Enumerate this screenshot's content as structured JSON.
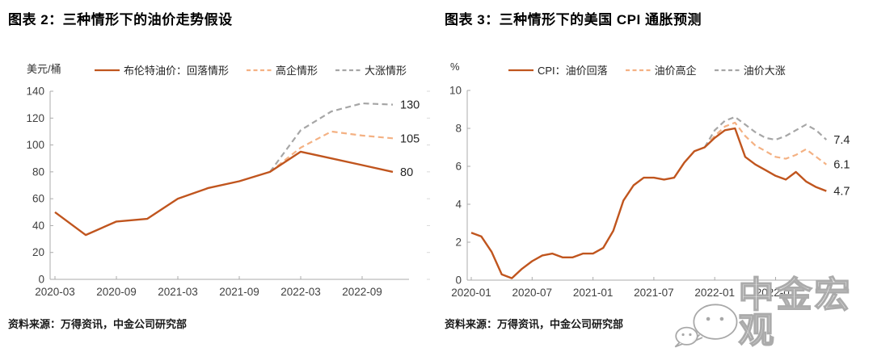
{
  "charts": [
    {
      "title": "图表 2：三种情形下的油价走势假设",
      "unit": "美元/桶",
      "source": "资料来源：万得资讯，中金公司研究部"
    },
    {
      "title": "图表 3：三种情形下的美国 CPI 通胀预测",
      "unit": "%",
      "source": "资料来源：万得资讯，中金公司研究部"
    }
  ],
  "watermark": {
    "text": "中金宏观",
    "icon": "wechat-icon"
  },
  "colors": {
    "series_solid": "#C0551E",
    "series_dashed_orange": "#F4B183",
    "series_dashed_gray": "#A6A6A6",
    "axis": "#ABABAB",
    "tick_text": "#404040",
    "end_label_text": "#262626"
  },
  "chart_data": [
    {
      "type": "line",
      "title": "图表 2：三种情形下的油价走势假设",
      "xlabel": "",
      "ylabel": "美元/桶",
      "ylim": [
        0,
        140
      ],
      "y_ticks": [
        0,
        20,
        40,
        60,
        80,
        100,
        120,
        140
      ],
      "grid": false,
      "legend_position": "top",
      "x": [
        "2020-03",
        "2020-06",
        "2020-09",
        "2020-12",
        "2021-03",
        "2021-06",
        "2021-09",
        "2021-12",
        "2022-03",
        "2022-06",
        "2022-09",
        "2022-12"
      ],
      "x_tick_indices": [
        0,
        2,
        4,
        6,
        8,
        10
      ],
      "x_tick_labels": [
        "2020-03",
        "2020-09",
        "2021-03",
        "2021-09",
        "2022-03",
        "2022-09"
      ],
      "series": [
        {
          "name": "布伦特油价：回落情形",
          "color": "#C0551E",
          "style": "solid",
          "end_label": "80",
          "values": [
            50,
            33,
            43,
            45,
            60,
            68,
            73,
            80,
            95,
            90,
            85,
            80
          ]
        },
        {
          "name": "高企情形",
          "color": "#F4B183",
          "style": "dashed",
          "end_label": "105",
          "values": [
            null,
            null,
            null,
            null,
            null,
            null,
            null,
            80,
            98,
            110,
            107,
            105
          ]
        },
        {
          "name": "大涨情形",
          "color": "#A6A6A6",
          "style": "dashed",
          "end_label": "130",
          "values": [
            null,
            null,
            null,
            null,
            null,
            null,
            null,
            80,
            111,
            125,
            131,
            130
          ]
        }
      ]
    },
    {
      "type": "line",
      "title": "图表 3：三种情形下的美国 CPI 通胀预测",
      "xlabel": "",
      "ylabel": "%",
      "ylim": [
        0,
        10
      ],
      "y_ticks": [
        0,
        2,
        4,
        6,
        8,
        10
      ],
      "grid": false,
      "legend_position": "top",
      "x": [
        "2020-01",
        "2020-02",
        "2020-03",
        "2020-04",
        "2020-05",
        "2020-06",
        "2020-07",
        "2020-08",
        "2020-09",
        "2020-10",
        "2020-11",
        "2020-12",
        "2021-01",
        "2021-02",
        "2021-03",
        "2021-04",
        "2021-05",
        "2021-06",
        "2021-07",
        "2021-08",
        "2021-09",
        "2021-10",
        "2021-11",
        "2021-12",
        "2022-01",
        "2022-02",
        "2022-03",
        "2022-04",
        "2022-05",
        "2022-06",
        "2022-07",
        "2022-08",
        "2022-09",
        "2022-10",
        "2022-11",
        "2022-12"
      ],
      "x_tick_indices": [
        0,
        6,
        12,
        18,
        24,
        30
      ],
      "x_tick_labels": [
        "2020-01",
        "2020-07",
        "2021-01",
        "2021-07",
        "2022-01",
        "2022-07"
      ],
      "series": [
        {
          "name": "CPI：油价回落",
          "color": "#C0551E",
          "style": "solid",
          "end_label": "4.7",
          "values": [
            2.5,
            2.3,
            1.5,
            0.3,
            0.1,
            0.6,
            1.0,
            1.3,
            1.4,
            1.2,
            1.2,
            1.4,
            1.4,
            1.7,
            2.6,
            4.2,
            5.0,
            5.4,
            5.4,
            5.3,
            5.4,
            6.2,
            6.8,
            7.0,
            7.5,
            7.9,
            8.0,
            6.5,
            6.1,
            5.8,
            5.5,
            5.3,
            5.7,
            5.2,
            4.9,
            4.7
          ]
        },
        {
          "name": "油价高企",
          "color": "#F4B183",
          "style": "dashed",
          "end_label": "6.1",
          "values": [
            null,
            null,
            null,
            null,
            null,
            null,
            null,
            null,
            null,
            null,
            null,
            null,
            null,
            null,
            null,
            null,
            null,
            null,
            null,
            null,
            null,
            null,
            null,
            7.0,
            7.6,
            8.1,
            8.3,
            7.6,
            7.1,
            6.8,
            6.5,
            6.4,
            6.6,
            6.9,
            6.5,
            6.1
          ]
        },
        {
          "name": "油价大涨",
          "color": "#A6A6A6",
          "style": "dashed",
          "end_label": "7.4",
          "values": [
            null,
            null,
            null,
            null,
            null,
            null,
            null,
            null,
            null,
            null,
            null,
            null,
            null,
            null,
            null,
            null,
            null,
            null,
            null,
            null,
            null,
            null,
            null,
            7.0,
            7.9,
            8.4,
            8.6,
            8.2,
            7.8,
            7.5,
            7.4,
            7.6,
            7.9,
            8.2,
            7.9,
            7.4
          ]
        }
      ]
    }
  ]
}
